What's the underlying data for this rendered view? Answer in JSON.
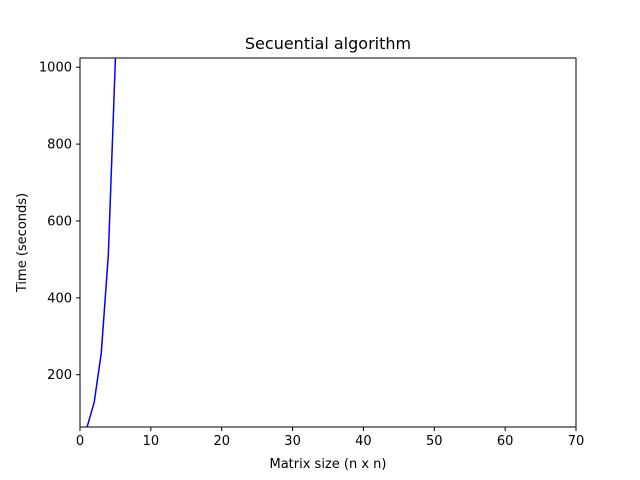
{
  "chart_data": {
    "type": "line",
    "title": "Secuential algorithm",
    "xlabel": "Matrix size (n x n)",
    "ylabel": "Time (seconds)",
    "xlim": [
      0,
      70
    ],
    "ylim": [
      64,
      1024
    ],
    "xticks": [
      0,
      10,
      20,
      30,
      40,
      50,
      60,
      70
    ],
    "yticks": [
      200,
      400,
      600,
      800,
      1000
    ],
    "grid": false,
    "series": [
      {
        "color": "#0000ff",
        "x": [
          1,
          2,
          3,
          4,
          5
        ],
        "y": [
          64,
          128,
          256,
          512,
          1024
        ]
      }
    ]
  }
}
